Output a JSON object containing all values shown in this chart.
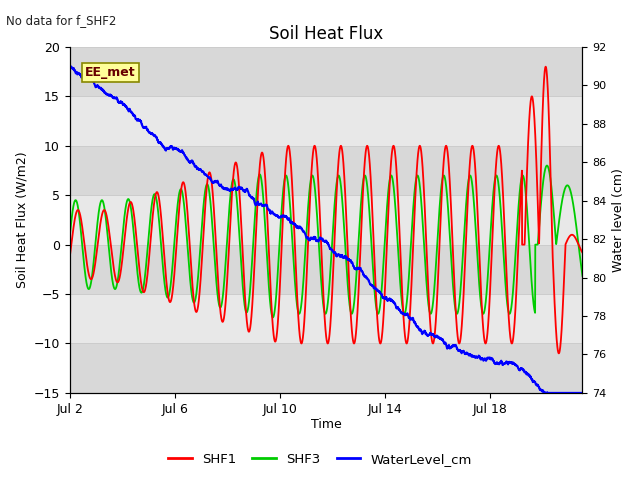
{
  "title": "Soil Heat Flux",
  "subtitle": "No data for f_SHF2",
  "xlabel": "Time",
  "ylabel_left": "Soil Heat Flux (W/m2)",
  "ylabel_right": "Water level (cm)",
  "xlim": [
    0,
    19.5
  ],
  "ylim_left": [
    -15,
    20
  ],
  "ylim_right": [
    74,
    92
  ],
  "yticks_left": [
    -15,
    -10,
    -5,
    0,
    5,
    10,
    15,
    20
  ],
  "yticks_right": [
    74,
    76,
    78,
    80,
    82,
    84,
    86,
    88,
    90,
    92
  ],
  "xtick_positions": [
    0,
    4,
    8,
    12,
    16
  ],
  "xtick_labels": [
    "Jul 2",
    "Jul 6",
    "Jul 10",
    "Jul 14",
    "Jul 18"
  ],
  "shf1_color": "#ff0000",
  "shf3_color": "#00cc00",
  "water_color": "#0000ff",
  "bg_color": "#ffffff",
  "plot_bg_color": "#e8e8e8",
  "ee_met_label": "EE_met",
  "ee_met_bg": "#ffff99",
  "ee_met_border": "#888800",
  "legend_items": [
    "SHF1",
    "SHF3",
    "WaterLevel_cm"
  ],
  "band_colors": [
    "#d8d8d8",
    "#e8e8e8",
    "#d8d8d8",
    "#e8e8e8",
    "#d8d8d8",
    "#e8e8e8",
    "#d8d8d8"
  ],
  "band_yticks": [
    -15,
    -10,
    -5,
    0,
    5,
    10,
    15,
    20
  ]
}
